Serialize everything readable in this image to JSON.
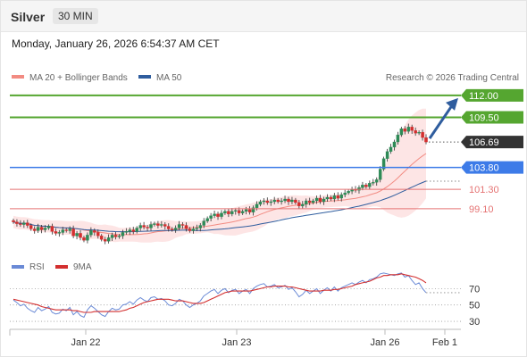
{
  "header": {
    "instrument": "Silver",
    "timeframe": "30 MIN"
  },
  "timestamp": "Monday, January 26, 2026 6:54:37 AM CET",
  "legend": {
    "ma20": "MA 20 + Bollinger Bands",
    "ma50": "MA 50",
    "credit": "Research © 2026 Trading Central"
  },
  "rsi_legend": {
    "rsi": "RSI",
    "ma9": "9MA"
  },
  "colors": {
    "up": "#2e8b57",
    "down": "#d32f2f",
    "resistance": "#55a630",
    "current": "#333333",
    "pivot": "#3d7be8",
    "support": "#e57373",
    "ma20": "#f28b82",
    "band": "#fde0e0",
    "ma50": "#2f5d9e",
    "rsi": "#6a8ad6",
    "rsi_ma": "#d32f2f",
    "arrow": "#2f5d9e"
  },
  "chart_data": [
    {
      "type": "candlestick",
      "x_ticks": [
        "Jan 22",
        "Jan 23",
        "Jan 26",
        "Feb 1"
      ],
      "ylim": [
        93.8,
        113.0
      ],
      "close": [
        97.6,
        97.4,
        97.3,
        97.5,
        97.2,
        96.8,
        96.6,
        97.0,
        96.7,
        96.9,
        97.1,
        96.5,
        96.3,
        96.4,
        96.7,
        96.6,
        96.8,
        96.0,
        96.3,
        95.8,
        95.5,
        96.1,
        96.6,
        96.4,
        96.0,
        95.6,
        95.4,
        95.8,
        96.1,
        95.9,
        96.0,
        96.4,
        96.5,
        96.7,
        96.5,
        96.9,
        97.2,
        97.0,
        96.9,
        97.3,
        97.4,
        97.2,
        97.3,
        97.1,
        96.8,
        96.7,
        96.9,
        97.3,
        97.2,
        96.8,
        96.6,
        96.8,
        96.9,
        97.2,
        97.7,
        98.0,
        98.3,
        98.5,
        98.2,
        98.6,
        98.8,
        98.5,
        98.8,
        98.9,
        98.6,
        98.8,
        99.0,
        98.7,
        99.2,
        99.6,
        99.9,
        100.0,
        99.8,
        99.9,
        100.1,
        99.9,
        100.0,
        100.2,
        99.9,
        100.1,
        99.8,
        99.4,
        99.6,
        100.0,
        99.8,
        100.0,
        100.3,
        99.9,
        100.2,
        100.4,
        100.2,
        100.6,
        100.3,
        100.7,
        100.9,
        101.1,
        101.3,
        101.2,
        101.5,
        101.8,
        101.6,
        102.0,
        102.1,
        102.4,
        103.6,
        104.8,
        105.6,
        106.1,
        106.7,
        107.5,
        108.2,
        107.9,
        108.4,
        108.0,
        107.7,
        107.8,
        107.2,
        106.69
      ],
      "overlays": {
        "ma20": "MA 20 + Bollinger Bands",
        "ma50": "MA 50"
      },
      "levels": [
        {
          "value": "112.00",
          "kind": "resistance"
        },
        {
          "value": "109.50",
          "kind": "resistance"
        },
        {
          "value": "106.69",
          "kind": "current"
        },
        {
          "value": "103.80",
          "kind": "pivot"
        },
        {
          "value": "101.30",
          "kind": "support"
        },
        {
          "value": "99.10",
          "kind": "support"
        }
      ],
      "arrow_target": 112.0
    },
    {
      "type": "line",
      "ylim": [
        17,
        90
      ],
      "y_ticks": [
        "70",
        "50",
        "30"
      ],
      "series": [
        {
          "name": "RSI",
          "values": [
            56,
            53,
            49,
            51,
            46,
            43,
            41,
            47,
            43,
            45,
            48,
            41,
            39,
            40,
            45,
            43,
            47,
            38,
            42,
            37,
            35,
            44,
            49,
            46,
            42,
            38,
            36,
            42,
            46,
            44,
            45,
            50,
            51,
            54,
            51,
            56,
            59,
            56,
            54,
            59,
            60,
            57,
            58,
            55,
            50,
            49,
            52,
            57,
            55,
            50,
            47,
            50,
            52,
            55,
            61,
            64,
            67,
            69,
            64,
            68,
            70,
            65,
            68,
            69,
            64,
            67,
            69,
            64,
            70,
            73,
            75,
            76,
            72,
            73,
            75,
            71,
            72,
            74,
            69,
            71,
            66,
            60,
            63,
            68,
            64,
            67,
            70,
            64,
            68,
            71,
            67,
            72,
            67,
            71,
            73,
            75,
            77,
            75,
            78,
            80,
            77,
            81,
            82,
            84,
            88,
            89,
            88,
            87,
            86,
            88,
            89,
            84,
            86,
            80,
            75,
            77,
            70,
            65
          ]
        },
        {
          "name": "9MA",
          "values": [
            57,
            56,
            55,
            54,
            53,
            52,
            51,
            50,
            48,
            47,
            46,
            45,
            44,
            44,
            44,
            44,
            44,
            43,
            43,
            42,
            41,
            41,
            41,
            42,
            42,
            42,
            42,
            42,
            42,
            42,
            42,
            43,
            44,
            46,
            47,
            49,
            51,
            53,
            54,
            55,
            56,
            57,
            57,
            57,
            57,
            56,
            55,
            55,
            55,
            54,
            53,
            52,
            52,
            52,
            53,
            55,
            57,
            59,
            61,
            63,
            65,
            66,
            67,
            67,
            67,
            67,
            67,
            67,
            68,
            69,
            70,
            71,
            72,
            72,
            73,
            73,
            73,
            73,
            72,
            72,
            71,
            70,
            69,
            68,
            67,
            67,
            67,
            67,
            68,
            68,
            68,
            69,
            69,
            70,
            71,
            72,
            73,
            75,
            76,
            77,
            78,
            79,
            81,
            83,
            84,
            86,
            86,
            87,
            87,
            87,
            88,
            87,
            86,
            85,
            84,
            82,
            80,
            77
          ]
        }
      ]
    }
  ]
}
